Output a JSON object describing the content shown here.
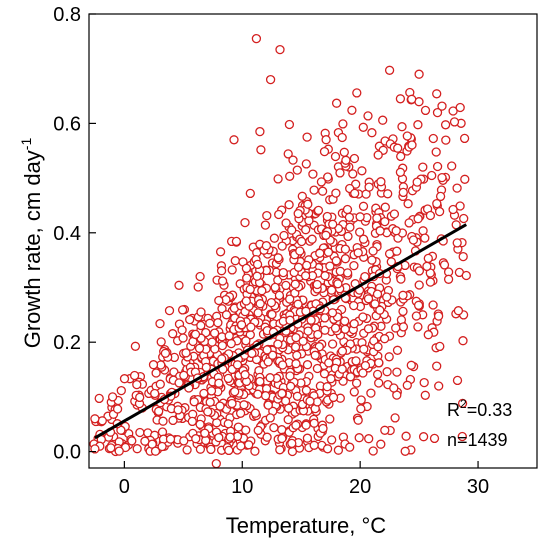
{
  "chart_data": {
    "type": "scatter",
    "xlabel": "Temperature, °C",
    "ylabel_main": "Growth rate, cm day",
    "ylabel_sup": "-1",
    "xlim": [
      -3,
      35
    ],
    "ylim": [
      -0.03,
      0.8
    ],
    "xticks": [
      0,
      10,
      20,
      30
    ],
    "yticks": [
      0.0,
      0.2,
      0.4,
      0.6,
      0.8
    ],
    "ytick_labels": [
      "0.0",
      "0.2",
      "0.4",
      "0.6",
      "0.8"
    ],
    "grid": false,
    "marker_color": "#d42020",
    "line_color": "#000000",
    "annotations": {
      "r2_prefix": "R",
      "r2_sup": "2",
      "r2_suffix": "=0.33",
      "n_text": "n=1439"
    },
    "regression_line": {
      "x": [
        -2.5,
        29
      ],
      "y": [
        0.025,
        0.415
      ]
    },
    "n": 1439,
    "notable_points": [
      {
        "x": 11.2,
        "y": 0.755
      },
      {
        "x": 13.2,
        "y": 0.735
      },
      {
        "x": 12.4,
        "y": 0.68
      },
      {
        "x": 22.5,
        "y": 0.697
      },
      {
        "x": 25.0,
        "y": 0.69
      },
      {
        "x": 18.0,
        "y": 0.637
      },
      {
        "x": 19.3,
        "y": 0.624
      },
      {
        "x": 14.0,
        "y": 0.598
      },
      {
        "x": 11.5,
        "y": 0.585
      },
      {
        "x": 21.0,
        "y": 0.583
      },
      {
        "x": 9.3,
        "y": 0.57
      },
      {
        "x": 24.0,
        "y": 0.577
      },
      {
        "x": 15.5,
        "y": 0.575
      },
      {
        "x": 29.0,
        "y": 0.322
      },
      {
        "x": 27.5,
        "y": 0.315
      },
      {
        "x": 7.8,
        "y": -0.022
      },
      {
        "x": -2.5,
        "y": 0.005
      },
      {
        "x": -2.5,
        "y": 0.06
      },
      {
        "x": -1.0,
        "y": 0.1
      },
      {
        "x": 14.2,
        "y": 0.015
      }
    ]
  }
}
